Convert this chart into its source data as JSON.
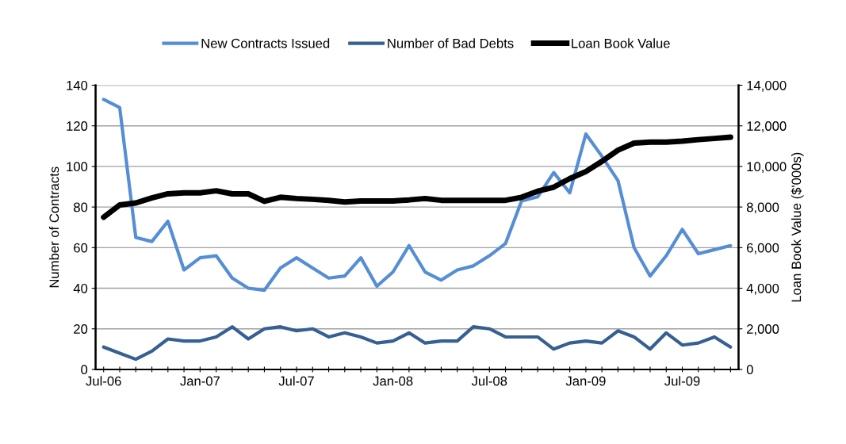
{
  "chart_data": {
    "type": "line",
    "categories": [
      "Jul-06",
      null,
      null,
      null,
      null,
      null,
      "Jan-07",
      null,
      null,
      null,
      null,
      null,
      "Jul-07",
      null,
      null,
      null,
      null,
      null,
      "Jan-08",
      null,
      null,
      null,
      null,
      null,
      "Jul-08",
      null,
      null,
      null,
      null,
      null,
      "Jan-09",
      null,
      null,
      null,
      null,
      null,
      "Jul-09",
      null,
      null,
      null
    ],
    "ylabel": "Number of Contracts",
    "y2label": "Loan Book Value ($'000s)",
    "ylim": [
      0,
      140
    ],
    "yticks": [
      0,
      20,
      40,
      60,
      80,
      100,
      120,
      140
    ],
    "y2lim": [
      0,
      14000
    ],
    "y2ticks": [
      {
        "value": 0,
        "label": "0"
      },
      {
        "value": 2000,
        "label": "2,000"
      },
      {
        "value": 4000,
        "label": "4,000"
      },
      {
        "value": 6000,
        "label": "6,000"
      },
      {
        "value": 8000,
        "label": "8,000"
      },
      {
        "value": 10000,
        "label": "10,000"
      },
      {
        "value": 12000,
        "label": "12,000"
      },
      {
        "value": 14000,
        "label": "14,000"
      }
    ],
    "grid": "y",
    "legend": "top",
    "marker": "none",
    "line_style": "solid",
    "series": [
      {
        "name": "New Contracts Issued",
        "color": "#558ed5",
        "values": [
          133,
          129,
          65,
          63,
          73,
          49,
          55,
          56,
          45,
          40,
          39,
          50,
          55,
          50,
          45,
          46,
          55,
          41,
          48,
          61,
          48,
          44,
          49,
          51,
          56,
          62,
          83,
          85,
          97,
          87,
          116,
          105,
          93,
          60,
          46,
          56,
          69,
          57,
          59,
          61
        ]
      },
      {
        "name": "Number of Bad Debts",
        "color": "#366092",
        "values": [
          11,
          8,
          5,
          9,
          15,
          14,
          14,
          16,
          21,
          15,
          20,
          21,
          19,
          20,
          16,
          18,
          16,
          13,
          14,
          18,
          13,
          14,
          14,
          21,
          20,
          16,
          16,
          16,
          10,
          13,
          14,
          13,
          19,
          16,
          10,
          18,
          12,
          13,
          16,
          11
        ]
      },
      {
        "name": "Loan Book Value",
        "color": "#000000",
        "axis": "y2",
        "values": [
          7500,
          8100,
          8200,
          8450,
          8650,
          8700,
          8700,
          8800,
          8650,
          8650,
          8280,
          8480,
          8420,
          8380,
          8330,
          8250,
          8300,
          8300,
          8300,
          8350,
          8420,
          8330,
          8330,
          8330,
          8330,
          8330,
          8480,
          8780,
          8980,
          9400,
          9750,
          10250,
          10800,
          11150,
          11200,
          11200,
          11250,
          11320,
          11380,
          11440
        ]
      }
    ]
  }
}
